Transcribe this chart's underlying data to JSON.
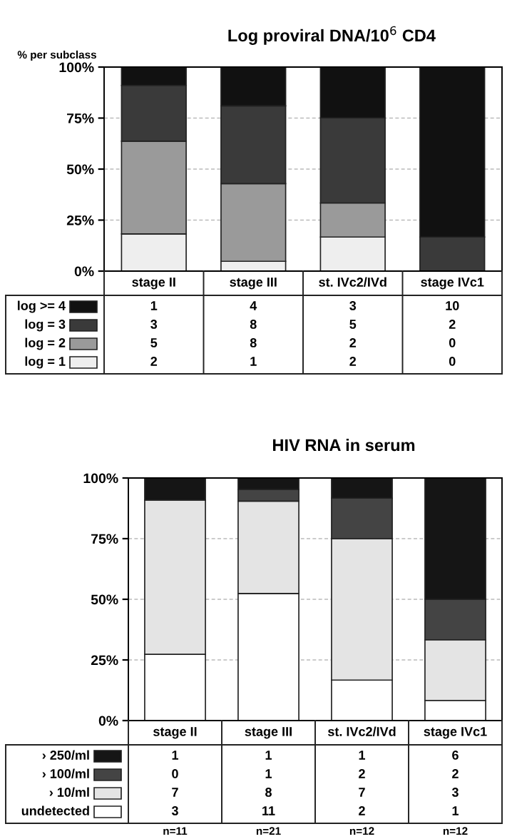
{
  "chart_data": [
    {
      "type": "bar",
      "stacked": true,
      "title": "Log proviral DNA/10$^{6}$ CD4",
      "ylabel": "% per subclass",
      "categories": [
        "stage II",
        "stage III",
        "st. IVc2/IVd",
        "stage IVc1"
      ],
      "ylim": [
        0,
        100
      ],
      "yticks": [
        {
          "value": 0,
          "label": "0%"
        },
        {
          "value": 25,
          "label": "25%"
        },
        {
          "value": 50,
          "label": "50%"
        },
        {
          "value": 75,
          "label": "75%"
        },
        {
          "value": 100,
          "label": "100%"
        }
      ],
      "grid": "y",
      "legend": "bottom",
      "series": [
        {
          "name": "log = 1",
          "color": "#eeeeee",
          "values": [
            18.2,
            4.8,
            16.7,
            0
          ]
        },
        {
          "name": "log = 2",
          "color": "#9a9a9a",
          "values": [
            45.5,
            38.1,
            16.7,
            0
          ]
        },
        {
          "name": "log = 3",
          "color": "#3a3a3a",
          "values": [
            27.3,
            38.1,
            41.7,
            16.7
          ]
        },
        {
          "name": "log >= 4",
          "color": "#111111",
          "values": [
            9.1,
            19.0,
            25.0,
            83.3
          ]
        }
      ],
      "annotations": [
        "1",
        "4",
        "3",
        "10",
        "3",
        "8",
        "5",
        "2",
        "5",
        "8",
        "2",
        "0",
        "2",
        "1",
        "2",
        "0"
      ]
    },
    {
      "type": "bar",
      "stacked": true,
      "title": "HIV RNA in serum",
      "categories": [
        "stage II",
        "stage III",
        "st. IVc2/IVd",
        "stage IVc1"
      ],
      "ylim": [
        0,
        100
      ],
      "yticks": [
        {
          "value": 0,
          "label": "0%"
        },
        {
          "value": 25,
          "label": "25%"
        },
        {
          "value": 50,
          "label": "50%"
        },
        {
          "value": 75,
          "label": "75%"
        },
        {
          "value": 100,
          "label": "100%"
        }
      ],
      "grid": "y",
      "legend": "bottom",
      "series": [
        {
          "name": "undetected",
          "color": "#ffffff",
          "values": [
            27.3,
            52.4,
            16.7,
            8.3
          ]
        },
        {
          "name": "› 10/ml",
          "color": "#e4e4e4",
          "values": [
            63.6,
            38.1,
            58.3,
            25.0
          ]
        },
        {
          "name": "› 100/ml",
          "color": "#444444",
          "values": [
            0,
            4.8,
            16.7,
            16.7
          ]
        },
        {
          "name": "› 250/ml",
          "color": "#151515",
          "values": [
            9.1,
            4.8,
            8.3,
            50.0
          ]
        }
      ],
      "annotations": [
        "1",
        "1",
        "1",
        "6",
        "0",
        "1",
        "2",
        "2",
        "7",
        "8",
        "7",
        "3",
        "3",
        "11",
        "2",
        "1",
        "n=11",
        "n=21",
        "n=12",
        "n=12"
      ]
    }
  ]
}
